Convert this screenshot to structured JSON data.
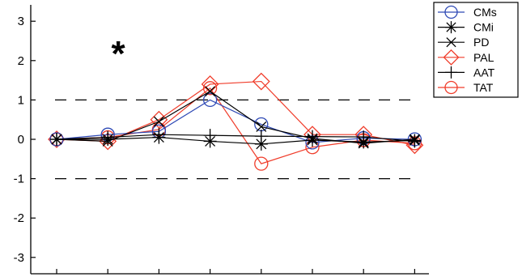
{
  "chart_data": {
    "type": "line",
    "x": [
      1,
      2,
      3,
      4,
      5,
      6,
      7,
      8
    ],
    "ylim": [
      -3.4,
      3.4
    ],
    "yticks": [
      "-3",
      "-2",
      "-1",
      "0",
      "1",
      "2",
      "3"
    ],
    "reference_lines": [
      1,
      -1
    ],
    "annotation": "*",
    "legend_position": "top-right",
    "series": [
      {
        "name": "CMs",
        "color": "#2e49b5",
        "marker": "circle",
        "values": [
          0.0,
          0.12,
          0.2,
          1.0,
          0.38,
          -0.08,
          0.03,
          0.0
        ]
      },
      {
        "name": "CMi",
        "color": "#000000",
        "marker": "asterisk",
        "values": [
          0.0,
          0.0,
          0.05,
          -0.05,
          -0.12,
          -0.02,
          -0.07,
          -0.03
        ]
      },
      {
        "name": "PD",
        "color": "#000000",
        "marker": "x",
        "values": [
          0.0,
          -0.05,
          0.45,
          1.22,
          0.32,
          0.02,
          -0.1,
          0.0
        ]
      },
      {
        "name": "PAL",
        "color": "#f03c2a",
        "marker": "diamond",
        "values": [
          0.0,
          -0.05,
          0.5,
          1.4,
          1.47,
          0.12,
          0.12,
          -0.15
        ]
      },
      {
        "name": "AAT",
        "color": "#000000",
        "marker": "plus",
        "values": [
          0.0,
          0.05,
          0.12,
          0.1,
          0.08,
          0.07,
          0.06,
          -0.05
        ]
      },
      {
        "name": "TAT",
        "color": "#f03c2a",
        "marker": "circle",
        "values": [
          0.0,
          0.05,
          0.25,
          1.3,
          -0.62,
          -0.2,
          -0.02,
          -0.1
        ]
      }
    ]
  }
}
